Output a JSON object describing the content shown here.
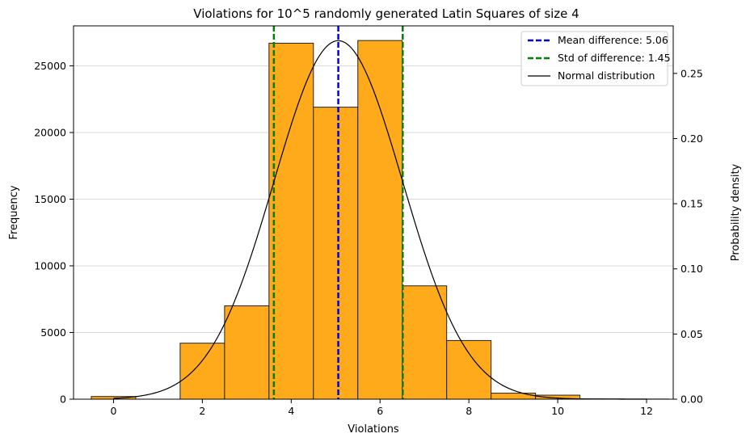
{
  "chart_data": {
    "type": "bar",
    "title": "Violations for 10^5 randomly generated Latin Squares of size 4",
    "xlabel": "Violations",
    "ylabel": "Frequency",
    "y2label": "Probability density",
    "xlim": [
      -0.9,
      12.6
    ],
    "ylim": [
      0,
      28000
    ],
    "y2lim": [
      0,
      0.2865
    ],
    "x_ticks": [
      0,
      2,
      4,
      6,
      8,
      10,
      12
    ],
    "y_ticks": [
      0,
      5000,
      10000,
      15000,
      20000,
      25000
    ],
    "y2_ticks": [
      0.0,
      0.05,
      0.1,
      0.15,
      0.2,
      0.25
    ],
    "y2_tick_labels": [
      "0.00",
      "0.05",
      "0.10",
      "0.15",
      "0.20",
      "0.25"
    ],
    "grid": "horizontal",
    "legend_position": "top-right",
    "bars": {
      "x": [
        0,
        1,
        2,
        3,
        4,
        5,
        6,
        7,
        8,
        9,
        10,
        11,
        12
      ],
      "values": [
        200,
        0,
        4200,
        7000,
        26700,
        21900,
        26900,
        8500,
        4400,
        450,
        300,
        20,
        10
      ],
      "color": "#FFAA1A",
      "edge_color": "#222222"
    },
    "mean_line": {
      "label": "Mean difference: 5.06",
      "value": 5.06,
      "color": "#0000EE"
    },
    "std_lines": {
      "label": "Std of difference: 1.45",
      "values": [
        3.61,
        6.51
      ],
      "color": "#008000"
    },
    "normal_curve": {
      "label": "Normal distribution",
      "mean": 5.06,
      "std": 1.45,
      "x_range": [
        0,
        12
      ],
      "color": "#000000"
    }
  }
}
